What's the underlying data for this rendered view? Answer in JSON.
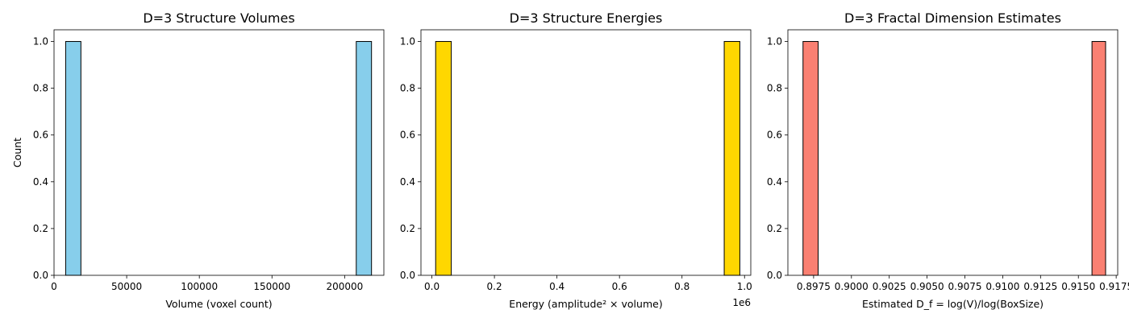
{
  "chart_data": [
    {
      "type": "histogram",
      "title": "D=3 Structure Volumes",
      "xlabel": "Volume (voxel count)",
      "ylabel": "Count",
      "offset_text": "",
      "color": "#87CEEB",
      "xlim": [
        0,
        227000
      ],
      "ylim": [
        0,
        1.05
      ],
      "xticks": [
        {
          "value": 0,
          "label": "0"
        },
        {
          "value": 50000,
          "label": "50000"
        },
        {
          "value": 100000,
          "label": "100000"
        },
        {
          "value": 150000,
          "label": "150000"
        },
        {
          "value": 200000,
          "label": "200000"
        }
      ],
      "yticks": [
        {
          "value": 0,
          "label": "0.0"
        },
        {
          "value": 0.2,
          "label": "0.2"
        },
        {
          "value": 0.4,
          "label": "0.4"
        },
        {
          "value": 0.6,
          "label": "0.6"
        },
        {
          "value": 0.8,
          "label": "0.8"
        },
        {
          "value": 1.0,
          "label": "1.0"
        }
      ],
      "bins": [
        {
          "x0": 8000,
          "x1": 18500,
          "count": 1
        },
        {
          "x0": 208000,
          "x1": 218500,
          "count": 1
        }
      ]
    },
    {
      "type": "histogram",
      "title": "D=3 Structure Energies",
      "xlabel": "Energy (amplitude² × volume)",
      "ylabel": "",
      "offset_text": "1e6",
      "color": "#FFD700",
      "xlim": [
        -0.035,
        1.02
      ],
      "ylim": [
        0,
        1.05
      ],
      "xticks": [
        {
          "value": 0,
          "label": "0.0"
        },
        {
          "value": 0.2,
          "label": "0.2"
        },
        {
          "value": 0.4,
          "label": "0.4"
        },
        {
          "value": 0.6,
          "label": "0.6"
        },
        {
          "value": 0.8,
          "label": "0.8"
        },
        {
          "value": 1.0,
          "label": "1.0"
        }
      ],
      "yticks": [
        {
          "value": 0,
          "label": "0.0"
        },
        {
          "value": 0.2,
          "label": "0.2"
        },
        {
          "value": 0.4,
          "label": "0.4"
        },
        {
          "value": 0.6,
          "label": "0.6"
        },
        {
          "value": 0.8,
          "label": "0.8"
        },
        {
          "value": 1.0,
          "label": "1.0"
        }
      ],
      "bins": [
        {
          "x0": 0.012,
          "x1": 0.062,
          "count": 1
        },
        {
          "x0": 0.935,
          "x1": 0.985,
          "count": 1
        }
      ]
    },
    {
      "type": "histogram",
      "title": "D=3 Fractal Dimension Estimates",
      "xlabel": "Estimated D_f = log(V)/log(BoxSize)",
      "ylabel": "",
      "offset_text": "",
      "color": "#FA8072",
      "xlim": [
        0.8958,
        0.9176
      ],
      "ylim": [
        0,
        1.05
      ],
      "xticks": [
        {
          "value": 0.8975,
          "label": "0.8975"
        },
        {
          "value": 0.9,
          "label": "0.9000"
        },
        {
          "value": 0.9025,
          "label": "0.9025"
        },
        {
          "value": 0.905,
          "label": "0.9050"
        },
        {
          "value": 0.9075,
          "label": "0.9075"
        },
        {
          "value": 0.91,
          "label": "0.9100"
        },
        {
          "value": 0.9125,
          "label": "0.9125"
        },
        {
          "value": 0.915,
          "label": "0.9150"
        },
        {
          "value": 0.9175,
          "label": "0.9175"
        }
      ],
      "yticks": [
        {
          "value": 0,
          "label": "0.0"
        },
        {
          "value": 0.2,
          "label": "0.2"
        },
        {
          "value": 0.4,
          "label": "0.4"
        },
        {
          "value": 0.6,
          "label": "0.6"
        },
        {
          "value": 0.8,
          "label": "0.8"
        },
        {
          "value": 1.0,
          "label": "1.0"
        }
      ],
      "bins": [
        {
          "x0": 0.8968,
          "x1": 0.8978,
          "count": 1
        },
        {
          "x0": 0.9159,
          "x1": 0.9168,
          "count": 1
        }
      ]
    }
  ]
}
